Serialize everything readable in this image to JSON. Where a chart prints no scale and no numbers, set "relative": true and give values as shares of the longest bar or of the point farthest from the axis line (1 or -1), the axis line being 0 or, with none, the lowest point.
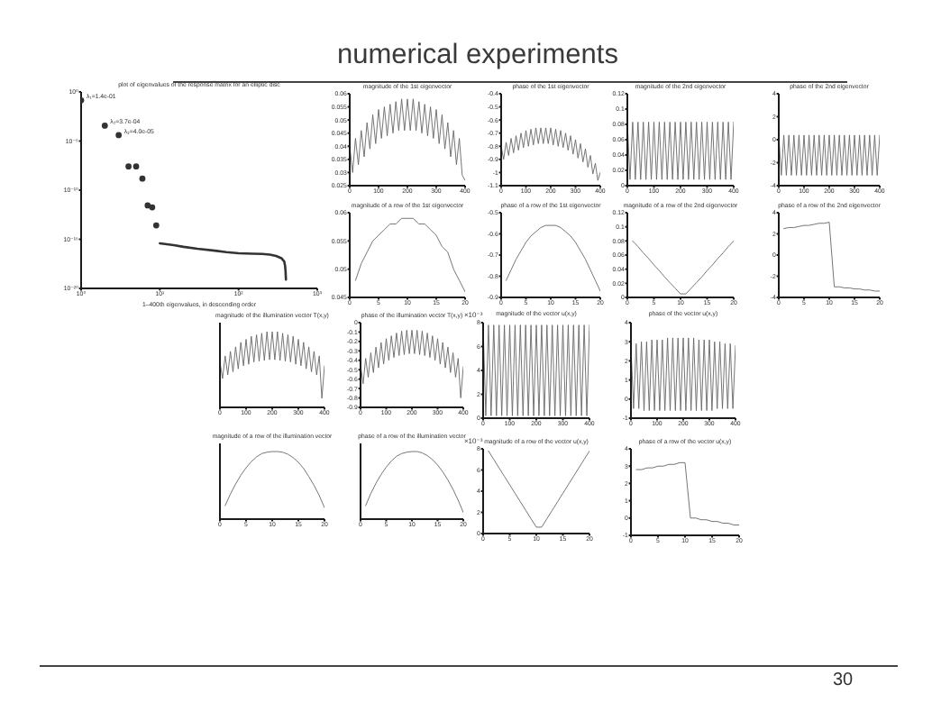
{
  "chart_data": [
    {
      "type": "other",
      "title": "numerical experiments",
      "annotations": [
        "30"
      ]
    },
    {
      "type": "scatter",
      "title": "plot of eigenvalues of the response matrix for an elliptic disc",
      "xlabel": "1–400th eigenvalues, in descending order",
      "log": "xy",
      "xlim": [
        1,
        1000
      ],
      "xticks": [
        {
          "value": 1,
          "label": "10⁰"
        },
        {
          "value": 10,
          "label": "10¹"
        },
        {
          "value": 100,
          "label": "10²"
        },
        {
          "value": 1000,
          "label": "10³"
        }
      ],
      "ylim": [
        1e-20,
        1
      ],
      "yticks": [
        {
          "value": 1e-20,
          "label": "10⁻²⁰"
        },
        {
          "value": 1e-15,
          "label": "10⁻¹⁵"
        },
        {
          "value": 1e-10,
          "label": "10⁻¹⁰"
        },
        {
          "value": 1e-05,
          "label": "10⁻⁵"
        },
        {
          "value": 1,
          "label": "10⁰"
        }
      ],
      "series": [
        {
          "type": "scatter",
          "marker": "circle",
          "color": "#333333",
          "x": [
            1,
            2,
            3,
            4,
            5,
            6,
            7,
            8,
            9
          ],
          "values": [
            0.14,
            0.00037,
            4e-05,
            2.6e-08,
            2.6e-08,
            1.5e-09,
            2.8e-12,
            1.8e-12,
            2.6e-14
          ]
        },
        {
          "type": "line",
          "color": "#333333",
          "x": [
            10,
            15,
            20,
            30,
            50,
            70,
            100,
            150,
            200,
            250,
            300,
            350,
            380,
            390,
            395,
            400
          ],
          "values": [
            3.9e-16,
            2.5e-16,
            1.7e-16,
            1.1e-16,
            7e-17,
            5e-17,
            3.8e-17,
            3.4e-17,
            3.2e-17,
            2.8e-17,
            2e-17,
            1.2e-17,
            5.6e-18,
            2e-18,
            6e-19,
            8e-20
          ]
        }
      ],
      "annotations": [
        {
          "text": "λ₁=1.4e-01",
          "x": 1,
          "y": 0.14
        },
        {
          "text": "λ₂=3.7e-04",
          "x": 2,
          "y": 0.00037
        },
        {
          "text": "λ₃=4.0e-05",
          "x": 3,
          "y": 4e-05
        }
      ]
    },
    {
      "type": "line",
      "title": "magnitude of the 1st eigenvector",
      "color": "#666666",
      "x": [
        0,
        10,
        20,
        30,
        40,
        50,
        60,
        70,
        80,
        90,
        100,
        110,
        120,
        130,
        140,
        150,
        160,
        170,
        180,
        190,
        200,
        210,
        220,
        230,
        240,
        250,
        260,
        270,
        280,
        290,
        300,
        310,
        320,
        330,
        340,
        350,
        360,
        370,
        380,
        390,
        400
      ],
      "values": [
        0.04,
        0.03,
        0.043,
        0.033,
        0.046,
        0.036,
        0.049,
        0.039,
        0.052,
        0.041,
        0.054,
        0.043,
        0.055,
        0.044,
        0.056,
        0.045,
        0.057,
        0.046,
        0.058,
        0.046,
        0.058,
        0.046,
        0.058,
        0.046,
        0.057,
        0.045,
        0.056,
        0.044,
        0.055,
        0.043,
        0.054,
        0.041,
        0.052,
        0.039,
        0.049,
        0.036,
        0.046,
        0.033,
        0.043,
        0.029,
        0.027
      ],
      "xlim": [
        0,
        400
      ],
      "xticks": [
        0,
        100,
        200,
        300,
        400
      ],
      "ylim": [
        0.025,
        0.06
      ],
      "yticks": [
        0.025,
        0.03,
        0.035,
        0.04,
        0.045,
        0.05,
        0.055,
        0.06
      ]
    },
    {
      "type": "line",
      "title": "phase of the 1st eigenvector",
      "color": "#666666",
      "x": [
        0,
        10,
        20,
        30,
        40,
        50,
        60,
        70,
        80,
        90,
        100,
        110,
        120,
        130,
        140,
        150,
        160,
        170,
        180,
        190,
        200,
        210,
        220,
        230,
        240,
        250,
        260,
        270,
        280,
        290,
        300,
        310,
        320,
        330,
        340,
        350,
        360,
        370,
        380,
        390,
        400
      ],
      "values": [
        -0.8,
        -0.9,
        -0.77,
        -0.87,
        -0.74,
        -0.85,
        -0.72,
        -0.83,
        -0.7,
        -0.81,
        -0.68,
        -0.8,
        -0.67,
        -0.79,
        -0.66,
        -0.78,
        -0.66,
        -0.78,
        -0.66,
        -0.78,
        -0.66,
        -0.79,
        -0.67,
        -0.8,
        -0.68,
        -0.81,
        -0.7,
        -0.83,
        -0.72,
        -0.86,
        -0.75,
        -0.89,
        -0.78,
        -0.92,
        -0.82,
        -0.96,
        -0.87,
        -1.01,
        -0.93,
        -1.06,
        -1.0
      ],
      "xlim": [
        0,
        400
      ],
      "xticks": [
        0,
        100,
        200,
        300,
        400
      ],
      "ylim": [
        -1.1,
        -0.4
      ],
      "yticks": [
        -1.1,
        -1,
        -0.9,
        -0.8,
        -0.7,
        -0.6,
        -0.5,
        -0.4
      ]
    },
    {
      "type": "line",
      "title": "magnitude of the 2nd eigenvector",
      "color": "#666666",
      "x": [
        0,
        10,
        20,
        30,
        40,
        50,
        60,
        70,
        80,
        90,
        100,
        110,
        120,
        130,
        140,
        150,
        160,
        170,
        180,
        190,
        200,
        210,
        220,
        230,
        240,
        250,
        260,
        270,
        280,
        290,
        300,
        310,
        320,
        330,
        340,
        350,
        360,
        370,
        380,
        390,
        400
      ],
      "values": [
        0.083,
        0.008,
        0.083,
        0.008,
        0.083,
        0.008,
        0.083,
        0.008,
        0.083,
        0.008,
        0.083,
        0.008,
        0.083,
        0.008,
        0.083,
        0.008,
        0.083,
        0.008,
        0.083,
        0.008,
        0.083,
        0.008,
        0.083,
        0.008,
        0.083,
        0.008,
        0.083,
        0.008,
        0.083,
        0.008,
        0.083,
        0.008,
        0.083,
        0.008,
        0.083,
        0.008,
        0.083,
        0.008,
        0.083,
        0.008,
        0.083
      ],
      "xlim": [
        0,
        400
      ],
      "xticks": [
        0,
        100,
        200,
        300,
        400
      ],
      "ylim": [
        0,
        0.12
      ],
      "yticks": [
        0,
        0.02,
        0.04,
        0.06,
        0.08,
        0.1,
        0.12
      ]
    },
    {
      "type": "line",
      "title": "phase of the 2nd eigenvector",
      "color": "#666666",
      "x": [
        0,
        10,
        20,
        30,
        40,
        50,
        60,
        70,
        80,
        90,
        100,
        110,
        120,
        130,
        140,
        150,
        160,
        170,
        180,
        190,
        200,
        210,
        220,
        230,
        240,
        250,
        260,
        270,
        280,
        290,
        300,
        310,
        320,
        330,
        340,
        350,
        360,
        370,
        380,
        390,
        400
      ],
      "values": [
        0.4,
        -3.1,
        0.4,
        -3.1,
        0.4,
        -3.1,
        0.4,
        -3.1,
        0.4,
        -3.1,
        0.4,
        -3.1,
        0.4,
        -3.1,
        0.4,
        -3.1,
        0.4,
        -3.1,
        0.4,
        -3.1,
        0.4,
        -3.1,
        0.4,
        -3.1,
        0.4,
        -3.1,
        0.4,
        -3.1,
        0.4,
        -3.1,
        0.4,
        -3.1,
        0.4,
        -3.1,
        0.4,
        -3.1,
        0.4,
        -3.1,
        0.4,
        -3.1,
        0.4
      ],
      "xlim": [
        0,
        400
      ],
      "xticks": [
        0,
        100,
        200,
        300,
        400
      ],
      "ylim": [
        -4,
        4
      ],
      "yticks": [
        -4,
        -2,
        0,
        2,
        4
      ]
    },
    {
      "type": "line",
      "title": "magnitude of a row of the 1st eigenvector",
      "color": "#666666",
      "x": [
        1,
        2,
        3,
        4,
        5,
        6,
        7,
        8,
        9,
        10,
        11,
        12,
        13,
        14,
        15,
        16,
        17,
        18,
        19,
        20
      ],
      "values": [
        0.048,
        0.051,
        0.053,
        0.055,
        0.056,
        0.057,
        0.058,
        0.058,
        0.059,
        0.059,
        0.059,
        0.058,
        0.058,
        0.057,
        0.056,
        0.054,
        0.053,
        0.05,
        0.048,
        0.046
      ],
      "xlim": [
        0,
        20
      ],
      "xticks": [
        0,
        5,
        10,
        15,
        20
      ],
      "ylim": [
        0.045,
        0.06
      ],
      "yticks": [
        0.045,
        0.05,
        0.055,
        0.06
      ]
    },
    {
      "type": "line",
      "title": "phase of a row of the 1st eigenvector",
      "color": "#666666",
      "x": [
        1,
        2,
        3,
        4,
        5,
        6,
        7,
        8,
        9,
        10,
        11,
        12,
        13,
        14,
        15,
        16,
        17,
        18,
        19,
        20
      ],
      "values": [
        -0.82,
        -0.77,
        -0.72,
        -0.68,
        -0.64,
        -0.61,
        -0.59,
        -0.57,
        -0.56,
        -0.56,
        -0.56,
        -0.57,
        -0.59,
        -0.61,
        -0.64,
        -0.68,
        -0.72,
        -0.77,
        -0.82,
        -0.87
      ],
      "xlim": [
        0,
        20
      ],
      "xticks": [
        0,
        5,
        10,
        15,
        20
      ],
      "ylim": [
        -0.9,
        -0.5
      ],
      "yticks": [
        -0.9,
        -0.8,
        -0.7,
        -0.6,
        -0.5
      ]
    },
    {
      "type": "line",
      "title": "magnitude of a row of the 2nd eigenvector",
      "color": "#666666",
      "x": [
        1,
        2,
        3,
        4,
        5,
        6,
        7,
        8,
        9,
        10,
        11,
        12,
        13,
        14,
        15,
        16,
        17,
        18,
        19,
        20
      ],
      "values": [
        0.08,
        0.072,
        0.063,
        0.055,
        0.046,
        0.038,
        0.029,
        0.021,
        0.013,
        0.005,
        0.005,
        0.013,
        0.021,
        0.029,
        0.038,
        0.046,
        0.055,
        0.063,
        0.072,
        0.08
      ],
      "xlim": [
        0,
        20
      ],
      "xticks": [
        0,
        5,
        10,
        15,
        20
      ],
      "ylim": [
        0,
        0.12
      ],
      "yticks": [
        0,
        0.02,
        0.04,
        0.06,
        0.08,
        0.1,
        0.12
      ]
    },
    {
      "type": "line",
      "title": "phase of a row of the 2nd eigenvector",
      "color": "#666666",
      "x": [
        1,
        2,
        3,
        4,
        5,
        6,
        7,
        8,
        9,
        10,
        11,
        12,
        13,
        14,
        15,
        16,
        17,
        18,
        19,
        20
      ],
      "values": [
        2.5,
        2.6,
        2.6,
        2.7,
        2.8,
        2.8,
        2.9,
        3.0,
        3.0,
        3.1,
        -3.0,
        -3.0,
        -3.1,
        -3.1,
        -3.2,
        -3.2,
        -3.3,
        -3.3,
        -3.4,
        -3.4
      ],
      "xlim": [
        0,
        20
      ],
      "xticks": [
        0,
        5,
        10,
        15,
        20
      ],
      "ylim": [
        -4,
        4
      ],
      "yticks": [
        -4,
        -2,
        0,
        2,
        4
      ]
    },
    {
      "type": "line",
      "title": "magnitude of the illumination vector T(x,y)",
      "color": "#666666",
      "relative": true,
      "x": [
        0,
        10,
        20,
        30,
        40,
        50,
        60,
        70,
        80,
        90,
        100,
        110,
        120,
        130,
        140,
        150,
        160,
        170,
        180,
        190,
        200,
        210,
        220,
        230,
        240,
        250,
        260,
        270,
        280,
        290,
        300,
        310,
        320,
        330,
        340,
        350,
        360,
        370,
        380,
        390,
        400
      ],
      "values": [
        0.6,
        0.38,
        0.68,
        0.43,
        0.74,
        0.47,
        0.8,
        0.51,
        0.86,
        0.55,
        0.9,
        0.57,
        0.94,
        0.6,
        0.96,
        0.61,
        0.98,
        0.62,
        1.0,
        0.63,
        1.0,
        0.63,
        1.0,
        0.62,
        0.98,
        0.61,
        0.96,
        0.6,
        0.94,
        0.57,
        0.9,
        0.55,
        0.86,
        0.51,
        0.8,
        0.47,
        0.74,
        0.43,
        0.68,
        0.12,
        0.55
      ],
      "xlim": [
        0,
        400
      ],
      "xticks": [
        0,
        100,
        200,
        300,
        400
      ]
    },
    {
      "type": "line",
      "title": "phase of the illumination vector T(x,y)",
      "color": "#666666",
      "x": [
        0,
        10,
        20,
        30,
        40,
        50,
        60,
        70,
        80,
        90,
        100,
        110,
        120,
        130,
        140,
        150,
        160,
        170,
        180,
        190,
        200,
        210,
        220,
        230,
        240,
        250,
        260,
        270,
        280,
        290,
        300,
        310,
        320,
        330,
        340,
        350,
        360,
        370,
        380,
        390,
        400
      ],
      "values": [
        -0.45,
        -0.65,
        -0.38,
        -0.58,
        -0.32,
        -0.53,
        -0.26,
        -0.48,
        -0.21,
        -0.44,
        -0.17,
        -0.4,
        -0.14,
        -0.37,
        -0.11,
        -0.35,
        -0.09,
        -0.34,
        -0.08,
        -0.33,
        -0.08,
        -0.33,
        -0.08,
        -0.34,
        -0.09,
        -0.35,
        -0.11,
        -0.37,
        -0.14,
        -0.4,
        -0.17,
        -0.44,
        -0.21,
        -0.48,
        -0.26,
        -0.53,
        -0.32,
        -0.58,
        -0.38,
        -0.8,
        -0.47
      ],
      "xlim": [
        0,
        400
      ],
      "xticks": [
        0,
        100,
        200,
        300,
        400
      ],
      "ylim": [
        -0.9,
        0
      ],
      "yticks": [
        -0.9,
        -0.8,
        -0.7,
        -0.6,
        -0.5,
        -0.4,
        -0.3,
        -0.2,
        -0.1,
        0
      ]
    },
    {
      "type": "line",
      "title": "magnitude of the vector u(x,y)",
      "color": "#666666",
      "annotations": [
        "×10⁻³"
      ],
      "x": [
        0,
        10,
        20,
        30,
        40,
        50,
        60,
        70,
        80,
        90,
        100,
        110,
        120,
        130,
        140,
        150,
        160,
        170,
        180,
        190,
        200,
        210,
        220,
        230,
        240,
        250,
        260,
        270,
        280,
        290,
        300,
        310,
        320,
        330,
        340,
        350,
        360,
        370,
        380,
        390,
        400
      ],
      "values": [
        7.8,
        0.2,
        7.8,
        0.2,
        7.8,
        0.2,
        7.8,
        0.2,
        7.8,
        0.2,
        7.8,
        0.2,
        7.8,
        0.2,
        7.8,
        0.2,
        7.8,
        0.2,
        7.8,
        0.2,
        7.8,
        0.2,
        7.8,
        0.2,
        7.8,
        0.2,
        7.8,
        0.2,
        7.8,
        0.2,
        7.8,
        0.2,
        7.8,
        0.2,
        7.8,
        0.2,
        7.8,
        0.2,
        7.8,
        0.2,
        7.8
      ],
      "xlim": [
        0,
        400
      ],
      "xticks": [
        0,
        100,
        200,
        300,
        400
      ],
      "ylim": [
        0,
        8
      ],
      "yticks": [
        0,
        2,
        4,
        6,
        8
      ]
    },
    {
      "type": "line",
      "title": "phase of the vector u(x,y)",
      "color": "#666666",
      "x": [
        0,
        10,
        20,
        30,
        40,
        50,
        60,
        70,
        80,
        90,
        100,
        110,
        120,
        130,
        140,
        150,
        160,
        170,
        180,
        190,
        200,
        210,
        220,
        230,
        240,
        250,
        260,
        270,
        280,
        290,
        300,
        310,
        320,
        330,
        340,
        350,
        360,
        370,
        380,
        390,
        400
      ],
      "values": [
        2.8,
        -0.5,
        2.9,
        -0.5,
        3.0,
        -0.6,
        3.0,
        -0.6,
        3.1,
        -0.6,
        3.1,
        -0.6,
        3.1,
        -0.6,
        3.2,
        -0.6,
        3.2,
        -0.6,
        3.2,
        -0.6,
        3.2,
        -0.6,
        3.2,
        -0.6,
        3.2,
        -0.6,
        3.1,
        -0.6,
        3.1,
        -0.6,
        3.1,
        -0.6,
        3.0,
        -0.5,
        3.0,
        -0.5,
        2.9,
        -0.5,
        2.9,
        -0.5,
        2.8
      ],
      "xlim": [
        0,
        400
      ],
      "xticks": [
        0,
        100,
        200,
        300,
        400
      ],
      "ylim": [
        -1,
        4
      ],
      "yticks": [
        -1,
        0,
        1,
        2,
        3,
        4
      ]
    },
    {
      "type": "line",
      "title": "magnitude of a row of the illumination vector",
      "color": "#666666",
      "relative": true,
      "x": [
        1,
        2,
        3,
        4,
        5,
        6,
        7,
        8,
        9,
        10,
        11,
        12,
        13,
        14,
        15,
        16,
        17,
        18,
        19,
        20
      ],
      "values": [
        0.2,
        0.37,
        0.52,
        0.65,
        0.76,
        0.85,
        0.92,
        0.97,
        0.99,
        1.0,
        1.0,
        0.99,
        0.96,
        0.91,
        0.84,
        0.75,
        0.63,
        0.5,
        0.35,
        0.17
      ],
      "xlim": [
        0,
        20
      ],
      "xticks": [
        0,
        5,
        10,
        15,
        20
      ]
    },
    {
      "type": "line",
      "title": "phase of a row of the illumination vector",
      "color": "#666666",
      "relative": true,
      "x": [
        1,
        2,
        3,
        4,
        5,
        6,
        7,
        8,
        9,
        10,
        11,
        12,
        13,
        14,
        15,
        16,
        17,
        18,
        19,
        20
      ],
      "values": [
        0.2,
        0.38,
        0.53,
        0.66,
        0.77,
        0.86,
        0.93,
        0.97,
        0.99,
        1.0,
        1.0,
        0.98,
        0.94,
        0.88,
        0.8,
        0.7,
        0.58,
        0.44,
        0.28,
        0.1
      ],
      "xlim": [
        0,
        20
      ],
      "xticks": [
        0,
        5,
        10,
        15,
        20
      ]
    },
    {
      "type": "line",
      "title": "magnitude of a row of the vector u(x,y)",
      "color": "#666666",
      "annotations": [
        "×10⁻³"
      ],
      "x": [
        1,
        2,
        3,
        4,
        5,
        6,
        7,
        8,
        9,
        10,
        11,
        12,
        13,
        14,
        15,
        16,
        17,
        18,
        19,
        20
      ],
      "values": [
        7.8,
        7.0,
        6.2,
        5.4,
        4.6,
        3.8,
        3.0,
        2.2,
        1.4,
        0.6,
        0.6,
        1.4,
        2.2,
        3.0,
        3.8,
        4.6,
        5.4,
        6.2,
        7.0,
        7.8
      ],
      "xlim": [
        0,
        20
      ],
      "xticks": [
        0,
        5,
        10,
        15,
        20
      ],
      "ylim": [
        0,
        8
      ],
      "yticks": [
        0,
        2,
        4,
        6,
        8
      ]
    },
    {
      "type": "line",
      "title": "phase of a row of the vector u(x,y)",
      "color": "#666666",
      "x": [
        1,
        2,
        3,
        4,
        5,
        6,
        7,
        8,
        9,
        10,
        11,
        12,
        13,
        14,
        15,
        16,
        17,
        18,
        19,
        20
      ],
      "values": [
        2.8,
        2.8,
        2.9,
        2.9,
        3.0,
        3.0,
        3.1,
        3.1,
        3.2,
        3.2,
        0.0,
        0.0,
        -0.1,
        -0.1,
        -0.2,
        -0.2,
        -0.3,
        -0.3,
        -0.4,
        -0.4
      ],
      "xlim": [
        0,
        20
      ],
      "xticks": [
        0,
        5,
        10,
        15,
        20
      ],
      "ylim": [
        -1,
        4
      ],
      "yticks": [
        -1,
        0,
        1,
        2,
        3,
        4
      ]
    }
  ]
}
